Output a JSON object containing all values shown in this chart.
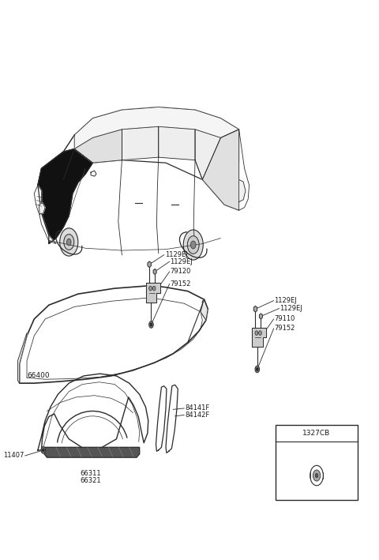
{
  "bg_color": "#ffffff",
  "lc": "#2a2a2a",
  "lblc": "#1a1a1a",
  "parts": {
    "hood_panel": "66400",
    "fender_lh": "66311",
    "fender_rh": "66321",
    "bolt_1": "1129EJ",
    "bolt_2": "1129EJ",
    "bolt_3": "1129EJ",
    "bolt_4": "1129EJ",
    "hinge_lh": "79120",
    "hinge_rh": "79110",
    "stopper_1": "79152",
    "stopper_2": "79152",
    "clip": "11407",
    "fender_apron_lh": "84141F",
    "fender_apron_rh": "84142F",
    "part_box": "1327CB"
  },
  "figsize": [
    4.8,
    7.09
  ],
  "dpi": 100
}
